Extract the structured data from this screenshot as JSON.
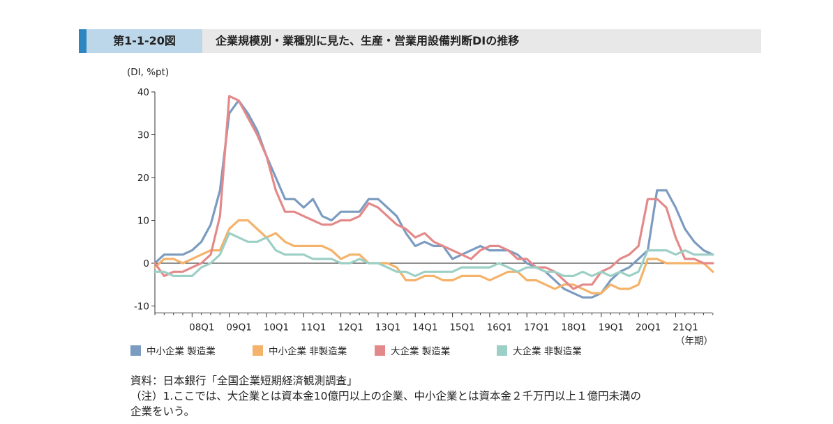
{
  "header": {
    "label": "第1-1-20図",
    "title": "企業規模別・業種別に見た、生産・営業用設備判断DIの推移"
  },
  "notes": {
    "source": "資料：日本銀行「全国企業短期経済観測調査」",
    "note1_line1": "（注）1.ここでは、大企業とは資本金10億円以上の企業、中小企業とは資本金２千万円以上１億円未満の",
    "note1_line2": "企業をいう。"
  },
  "chart_data": {
    "type": "line",
    "ylabel": "(DI, %pt)",
    "xlabel": "（年期）",
    "ylim": [
      -10,
      40
    ],
    "yticks": [
      -10,
      0,
      10,
      20,
      30,
      40
    ],
    "x_start": "07Q1",
    "x_labels": [
      {
        "label": "08Q1",
        "index": 4
      },
      {
        "label": "09Q1",
        "index": 8
      },
      {
        "label": "10Q1",
        "index": 12
      },
      {
        "label": "11Q1",
        "index": 16
      },
      {
        "label": "12Q1",
        "index": 20
      },
      {
        "label": "13Q1",
        "index": 24
      },
      {
        "label": "14Q1",
        "index": 28
      },
      {
        "label": "15Q1",
        "index": 32
      },
      {
        "label": "16Q1",
        "index": 36
      },
      {
        "label": "17Q1",
        "index": 40
      },
      {
        "label": "18Q1",
        "index": 44
      },
      {
        "label": "19Q1",
        "index": 48
      },
      {
        "label": "20Q1",
        "index": 52
      },
      {
        "label": "21Q1",
        "index": 56
      }
    ],
    "zero_line": true,
    "legend_position": "bottom",
    "series": [
      {
        "name": "中小企業 製造業",
        "color": "#7b9bc0",
        "values": [
          0,
          2,
          2,
          2,
          3,
          5,
          9,
          17,
          35,
          38,
          35,
          31,
          25,
          20,
          15,
          15,
          13,
          15,
          11,
          10,
          12,
          12,
          12,
          15,
          15,
          13,
          11,
          7,
          4,
          5,
          4,
          4,
          1,
          2,
          3,
          4,
          3,
          3,
          3,
          2,
          0,
          -1,
          -2,
          -4,
          -6,
          -7,
          -8,
          -8,
          -7,
          -4,
          -2,
          -1,
          1,
          3,
          17,
          17,
          13,
          8,
          5,
          3,
          2
        ]
      },
      {
        "name": "中小企業 非製造業",
        "color": "#f4b26a",
        "values": [
          -1,
          1,
          1,
          0,
          1,
          2,
          3,
          3,
          8,
          10,
          10,
          8,
          6,
          7,
          5,
          4,
          4,
          4,
          4,
          3,
          1,
          2,
          2,
          0,
          0,
          0,
          -1,
          -4,
          -4,
          -3,
          -3,
          -4,
          -4,
          -3,
          -3,
          -3,
          -4,
          -3,
          -2,
          -2,
          -4,
          -4,
          -5,
          -6,
          -5,
          -5,
          -6,
          -7,
          -7,
          -5,
          -6,
          -6,
          -5,
          1,
          1,
          0,
          0,
          0,
          0,
          0,
          -2
        ]
      },
      {
        "name": "大企業 製造業",
        "color": "#e48989",
        "values": [
          0,
          -3,
          -2,
          -2,
          -1,
          0,
          2,
          11,
          39,
          38,
          34,
          30,
          25,
          17,
          12,
          12,
          11,
          10,
          9,
          9,
          10,
          10,
          11,
          14,
          13,
          11,
          9,
          8,
          6,
          7,
          5,
          4,
          3,
          2,
          1,
          3,
          4,
          4,
          3,
          1,
          1,
          -1,
          -1,
          -2,
          -4,
          -6,
          -5,
          -5,
          -2,
          -1,
          1,
          2,
          4,
          15,
          15,
          13,
          6,
          1,
          1,
          0,
          0
        ]
      },
      {
        "name": "大企業 非製造業",
        "color": "#9ccfc5",
        "values": [
          -2,
          -2,
          -3,
          -3,
          -3,
          -1,
          0,
          2,
          7,
          6,
          5,
          5,
          6,
          3,
          2,
          2,
          2,
          1,
          1,
          1,
          0,
          0,
          1,
          0,
          0,
          -1,
          -2,
          -2,
          -3,
          -2,
          -2,
          -2,
          -2,
          -1,
          -1,
          -1,
          -1,
          0,
          -1,
          -2,
          -1,
          -1,
          -2,
          -2,
          -3,
          -3,
          -2,
          -3,
          -2,
          -3,
          -2,
          -3,
          -2,
          3,
          3,
          3,
          2,
          3,
          2,
          2,
          2
        ]
      }
    ]
  }
}
